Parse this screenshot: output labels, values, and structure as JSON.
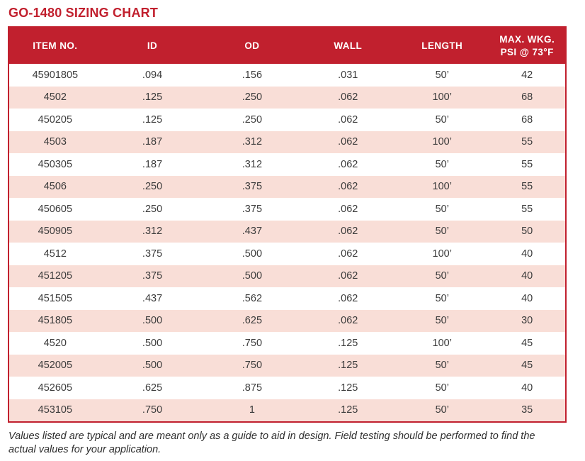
{
  "title": "GO-1480 SIZING CHART",
  "table": {
    "columns": [
      "ITEM NO.",
      "ID",
      "OD",
      "WALL",
      "LENGTH",
      "MAX. WKG. PSI @ 73°F"
    ],
    "rows": [
      [
        "45901805",
        ".094",
        ".156",
        ".031",
        "50’",
        "42"
      ],
      [
        "4502",
        ".125",
        ".250",
        ".062",
        "100’",
        "68"
      ],
      [
        "450205",
        ".125",
        ".250",
        ".062",
        "50’",
        "68"
      ],
      [
        "4503",
        ".187",
        ".312",
        ".062",
        "100’",
        "55"
      ],
      [
        "450305",
        ".187",
        ".312",
        ".062",
        "50’",
        "55"
      ],
      [
        "4506",
        ".250",
        ".375",
        ".062",
        "100’",
        "55"
      ],
      [
        "450605",
        ".250",
        ".375",
        ".062",
        "50’",
        "55"
      ],
      [
        "450905",
        ".312",
        ".437",
        ".062",
        "50’",
        "50"
      ],
      [
        "4512",
        ".375",
        ".500",
        ".062",
        "100’",
        "40"
      ],
      [
        "451205",
        ".375",
        ".500",
        ".062",
        "50’",
        "40"
      ],
      [
        "451505",
        ".437",
        ".562",
        ".062",
        "50’",
        "40"
      ],
      [
        "451805",
        ".500",
        ".625",
        ".062",
        "50’",
        "30"
      ],
      [
        "4520",
        ".500",
        ".750",
        ".125",
        "100’",
        "45"
      ],
      [
        "452005",
        ".500",
        ".750",
        ".125",
        "50’",
        "45"
      ],
      [
        "452605",
        ".625",
        ".875",
        ".125",
        "50’",
        "40"
      ],
      [
        "453105",
        ".750",
        "1",
        ".125",
        "50’",
        "35"
      ]
    ]
  },
  "footnote": "Values listed are typical and are meant only as a guide to aid in design. Field testing should be performed to find the actual values for your application.",
  "colors": {
    "accent_red": "#c1202e",
    "row_pink": "#f9ded7",
    "header_text": "#ffffff",
    "body_text": "#3b3b3b"
  }
}
